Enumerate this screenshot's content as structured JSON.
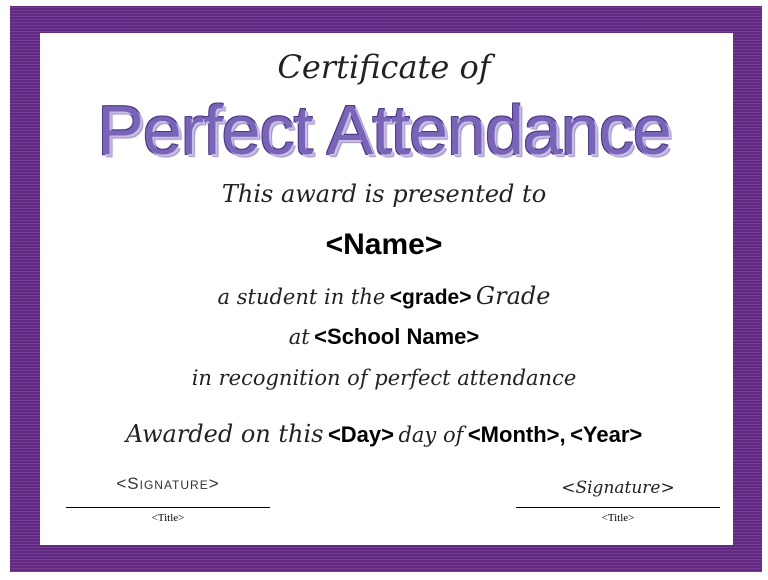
{
  "certificate": {
    "subtitle": "Certificate of",
    "title": "Perfect Attendance",
    "presented": "This award is presented to",
    "name": "<Name>",
    "student_prefix": "a student in the",
    "grade": "<grade>",
    "grade_suffix": "Grade",
    "at": "at",
    "school": "<School Name>",
    "recognition": "in recognition of perfect attendance",
    "awarded_prefix": "Awarded on this",
    "day": "<Day>",
    "day_of": "day of",
    "month": "<Month>",
    "comma": ",",
    "year": "<Year>"
  },
  "signatures": [
    {
      "signature": "<Signature>",
      "title": "<Title>"
    },
    {
      "signature": "<Signature>",
      "title": "<Title>"
    }
  ],
  "colors": {
    "border": "#6a2c8c",
    "title": "#7a64b8"
  }
}
